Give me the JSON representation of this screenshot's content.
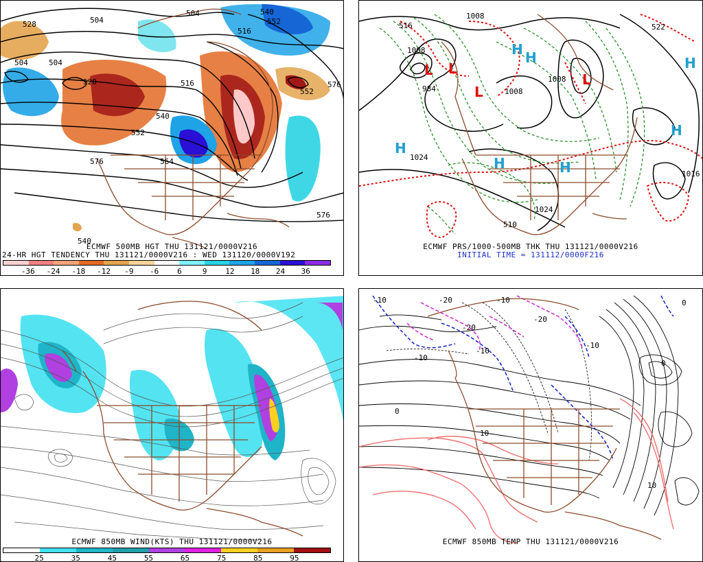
{
  "panels": {
    "hgt500": {
      "caption1": "ECMWF 500MB HGT THU 131121/0000V216",
      "caption2": "24-HR HGT TENDENCY THU 131121/0000V216 : WED 131120/0000V192",
      "contour_labels": [
        "528",
        "504",
        "504",
        "540",
        "552",
        "504",
        "528",
        "540",
        "552",
        "516",
        "576",
        "564",
        "576",
        "552",
        "576",
        "540",
        "504",
        "516"
      ],
      "colorbar_labels": [
        "-36",
        "-24",
        "-18",
        "-12",
        "-9",
        "-6",
        "6",
        "9",
        "12",
        "18",
        "24",
        "36"
      ],
      "colorbar_colors": [
        "#fcd2d2",
        "#f08080",
        "#f4a37a",
        "#e36a25",
        "#e3a450",
        "#f7d59a",
        "#ffffff",
        "#7ef2ff",
        "#2ad3e3",
        "#1ea3e6",
        "#1666d6",
        "#2a0fd4",
        "#8a2be2"
      ]
    },
    "prs": {
      "caption1": "ECMWF PRS/1000-500MB THK THU 131121/0000V216",
      "caption2": "INITIAL TIME = 131112/0000F216",
      "isobar_labels": [
        "1008",
        "516",
        "1008",
        "984",
        "1024",
        "1024",
        "1016",
        "510",
        "1008",
        "1008",
        "522"
      ],
      "high_label": "H",
      "low_label": "L"
    },
    "wind850": {
      "caption1": "ECMWF 850MB WIND(KTS) THU 131121/0000V216",
      "colorbar_labels": [
        "25",
        "35",
        "45",
        "55",
        "65",
        "75",
        "85",
        "95"
      ],
      "colorbar_colors": [
        "#ffffff",
        "#40e0f0",
        "#1fb4c8",
        "#20a0a8",
        "#b040e0",
        "#e020e0",
        "#ffd020",
        "#e8a020",
        "#a01010"
      ]
    },
    "temp850": {
      "caption1": "ECMWF 850MB TEMP THU 131121/0000V216",
      "contour_labels": [
        "-10",
        "-20",
        "-20",
        "-10",
        "-20",
        "-10",
        "0",
        "0",
        "10",
        "-10",
        "0",
        "10",
        "-10"
      ]
    }
  },
  "colors": {
    "coast": "#8b4a2a",
    "contour": "#000000",
    "thickness_red": "#e01010",
    "thickness_green": "#1a8a1a",
    "pressure_center": "#1fa0d0",
    "cold_blue": "#1020c8",
    "cold_magenta": "#d020d0",
    "warm_salmon": "#f07070"
  }
}
